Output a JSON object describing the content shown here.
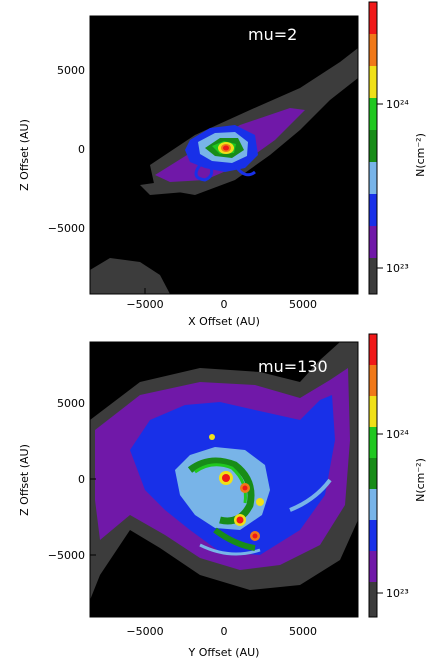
{
  "chart_data": [
    {
      "type": "heatmap",
      "panel_label": "mu=2",
      "xlabel": "X Offset (AU)",
      "ylabel": "Z Offset (AU)",
      "xlim": [
        -8500,
        8500
      ],
      "ylim": [
        -9000,
        9000
      ],
      "xticks": [
        "−5000",
        "0",
        "5000"
      ],
      "yticks": [
        "5000",
        "0",
        "−5000"
      ],
      "colorbar": {
        "label": "N(cm⁻²)",
        "scale": "log",
        "tick_labels": [
          "10²⁴",
          "10²³"
        ],
        "colors": [
          "#f01818",
          "#f07818",
          "#f0e018",
          "#20c820",
          "#188c18",
          "#78b4e8",
          "#1830e8",
          "#7018a8",
          "#3c3c3c"
        ]
      }
    },
    {
      "type": "heatmap",
      "panel_label": "mu=130",
      "xlabel": "Y Offset (AU)",
      "ylabel": "Z Offset (AU)",
      "xlim": [
        -8500,
        8500
      ],
      "ylim": [
        -9000,
        9000
      ],
      "xticks": [
        "−5000",
        "0",
        "5000"
      ],
      "yticks": [
        "5000",
        "0",
        "−5000"
      ],
      "colorbar": {
        "label": "N(cm⁻²)",
        "scale": "log",
        "tick_labels": [
          "10²⁴",
          "10²³"
        ],
        "colors": [
          "#f01818",
          "#f07818",
          "#f0e018",
          "#20c820",
          "#188c18",
          "#78b4e8",
          "#1830e8",
          "#7018a8",
          "#3c3c3c"
        ]
      }
    }
  ]
}
